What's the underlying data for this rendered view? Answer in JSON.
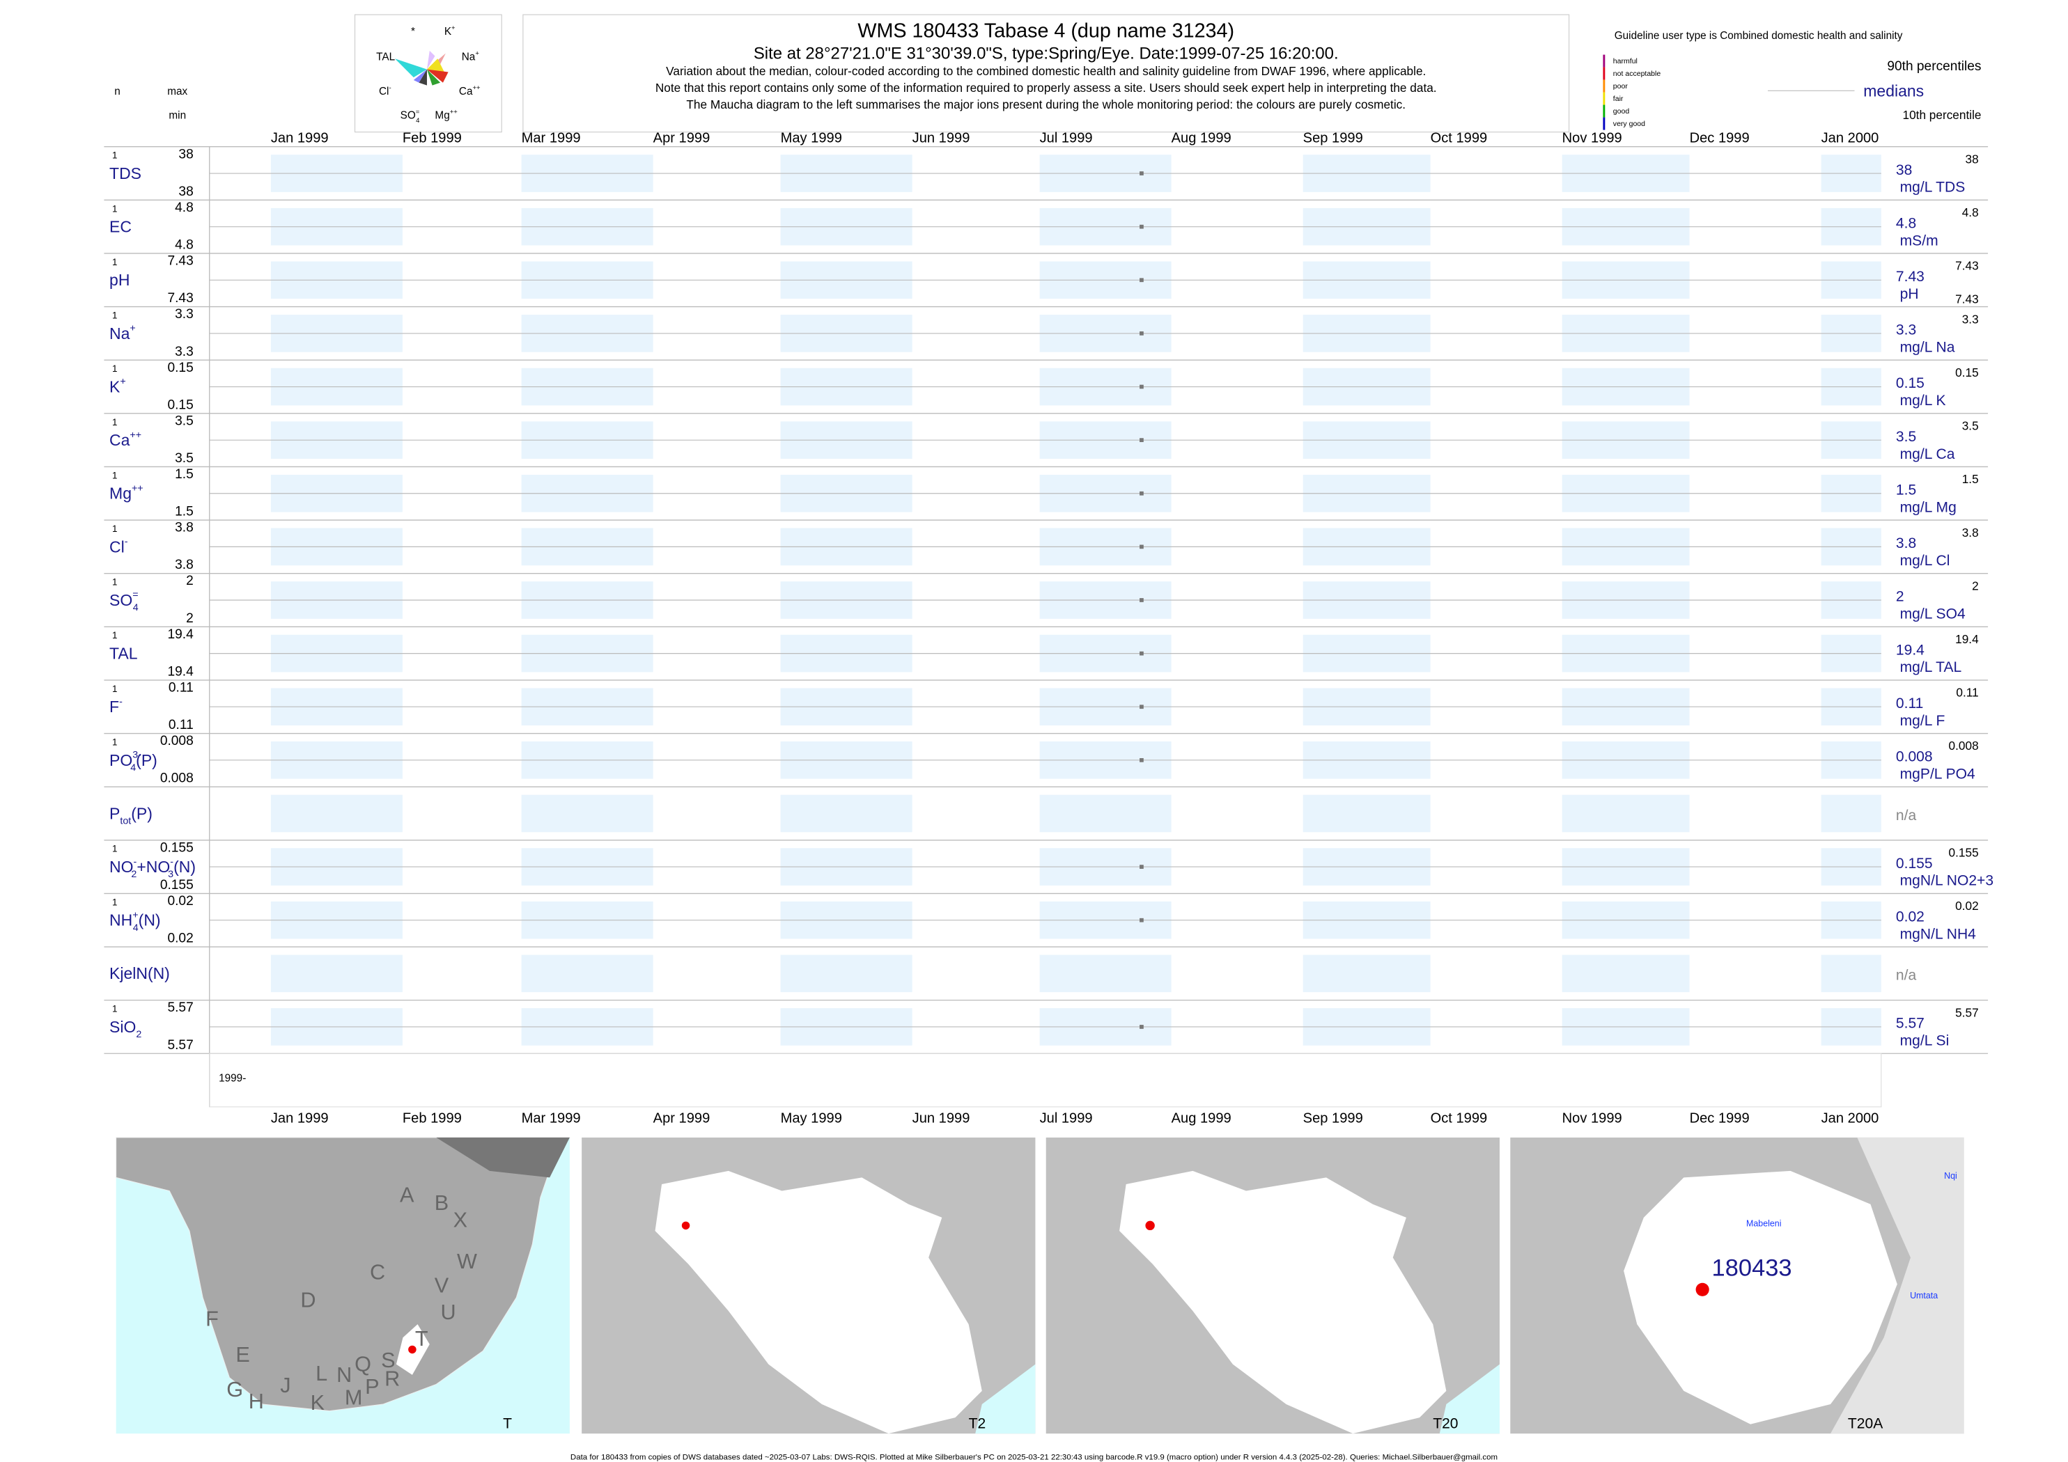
{
  "header": {
    "title": "WMS 180433  Tabase 4 (dup name 31234)",
    "site": "Site at 28°27'21.0\"E 31°30'39.0\"S, type:Spring/Eye. Date:",
    "date": "1999-07-25 16:20:00.",
    "notes": [
      "Variation about the median,  colour-coded according to the combined domestic health and salinity guideline from DWAF 1996, where applicable.",
      "Note that this report contains only some of the information required to properly assess a site. Users should seek expert help in interpreting the data.",
      "The Maucha diagram to the left summarises the major ions present during the whole monitoring period: the colours are purely cosmetic."
    ]
  },
  "maucha": {
    "labels": [
      [
        {
          "text": "*"
        }
      ],
      [
        {
          "text": "K"
        },
        {
          "text": "+",
          "pos": "sup"
        }
      ],
      [
        {
          "text": "Na"
        },
        {
          "text": "+",
          "pos": "sup"
        }
      ],
      [
        {
          "text": "Ca"
        },
        {
          "text": "++",
          "pos": "sup"
        }
      ],
      [
        {
          "text": "Mg"
        },
        {
          "text": "++",
          "pos": "sup"
        }
      ],
      [
        {
          "text": "SO"
        },
        {
          "text": "=",
          "pos": "sup"
        },
        {
          "text": "4",
          "pos": "sub",
          "stack": true
        }
      ],
      [
        {
          "text": "Cl"
        },
        {
          "text": "-",
          "pos": "sup"
        }
      ],
      [
        {
          "text": "TAL"
        }
      ]
    ]
  },
  "columns": {
    "n": "n",
    "max": "max",
    "min": "min"
  },
  "legend": {
    "title": "Guideline user type is Combined domestic health and salinity",
    "classes": [
      {
        "label": "harmful",
        "color": "#a0007a"
      },
      {
        "label": "not acceptable",
        "color": "#e0001a"
      },
      {
        "label": "poor",
        "color": "#ff8c00"
      },
      {
        "label": "fair",
        "color": "#f0e000"
      },
      {
        "label": "good",
        "color": "#00b000"
      },
      {
        "label": "very good",
        "color": "#0000c0"
      }
    ],
    "upper": "90th percentiles",
    "median": "medians",
    "lower": "10th percentile"
  },
  "months": [
    "Jan 1999",
    "Feb 1999",
    "Mar 1999",
    "Apr 1999",
    "May 1999",
    "Jun 1999",
    "Jul 1999",
    "Aug 1999",
    "Sep 1999",
    "Oct 1999",
    "Nov 1999",
    "Dec 1999",
    "Jan 2000"
  ],
  "rows": [
    {
      "label": [
        {
          "text": "TDS"
        }
      ],
      "n": 1,
      "max": 38,
      "min": 38,
      "median": 38,
      "unit": "mg/L TDS"
    },
    {
      "label": [
        {
          "text": "EC"
        }
      ],
      "n": 1,
      "max": 4.8,
      "min": 4.8,
      "median": 4.8,
      "unit": "mS/m"
    },
    {
      "label": [
        {
          "text": "pH"
        }
      ],
      "n": 1,
      "max": 7.43,
      "min": 7.43,
      "median": 7.43,
      "unit": "pH",
      "show_min": true
    },
    {
      "label": [
        {
          "text": "Na"
        },
        {
          "text": "+",
          "pos": "sup"
        }
      ],
      "n": 1,
      "max": 3.3,
      "min": 3.3,
      "median": 3.3,
      "unit": "mg/L Na"
    },
    {
      "label": [
        {
          "text": "K"
        },
        {
          "text": "+",
          "pos": "sup"
        }
      ],
      "n": 1,
      "max": 0.15,
      "min": 0.15,
      "median": 0.15,
      "unit": "mg/L K"
    },
    {
      "label": [
        {
          "text": "Ca"
        },
        {
          "text": "++",
          "pos": "sup"
        }
      ],
      "n": 1,
      "max": 3.5,
      "min": 3.5,
      "median": 3.5,
      "unit": "mg/L Ca"
    },
    {
      "label": [
        {
          "text": "Mg"
        },
        {
          "text": "++",
          "pos": "sup"
        }
      ],
      "n": 1,
      "max": 1.5,
      "min": 1.5,
      "median": 1.5,
      "unit": "mg/L Mg"
    },
    {
      "label": [
        {
          "text": "Cl"
        },
        {
          "text": "-",
          "pos": "sup"
        }
      ],
      "n": 1,
      "max": 3.8,
      "min": 3.8,
      "median": 3.8,
      "unit": "mg/L Cl"
    },
    {
      "label": [
        {
          "text": "SO"
        },
        {
          "text": "=",
          "pos": "sup"
        },
        {
          "text": "4",
          "pos": "sub",
          "stack": true
        }
      ],
      "n": 1,
      "max": 2,
      "min": 2,
      "median": 2,
      "unit": "mg/L SO4"
    },
    {
      "label": [
        {
          "text": "TAL"
        }
      ],
      "n": 1,
      "max": 19.4,
      "min": 19.4,
      "median": 19.4,
      "unit": "mg/L TAL"
    },
    {
      "label": [
        {
          "text": "F"
        },
        {
          "text": "-",
          "pos": "sup"
        }
      ],
      "n": 1,
      "max": 0.11,
      "min": 0.11,
      "median": 0.11,
      "unit": "mg/L F"
    },
    {
      "label": [
        {
          "text": "PO"
        },
        {
          "text": "3-",
          "pos": "sup"
        },
        {
          "text": "4",
          "pos": "sub",
          "stack": true
        },
        {
          "text": "(P)"
        }
      ],
      "n": 1,
      "max": 0.008,
      "min": 0.008,
      "median": 0.008,
      "unit": "mgP/L PO4"
    },
    {
      "label": [
        {
          "text": "P"
        },
        {
          "text": "tot",
          "pos": "sub"
        },
        {
          "text": "(P)"
        }
      ],
      "median": "n/a"
    },
    {
      "label": [
        {
          "text": "NO"
        },
        {
          "text": "-",
          "pos": "sup"
        },
        {
          "text": "2",
          "pos": "sub",
          "stack": true
        },
        {
          "text": "+NO"
        },
        {
          "text": "-",
          "pos": "sup"
        },
        {
          "text": "3",
          "pos": "sub",
          "stack": true
        },
        {
          "text": "(N)"
        }
      ],
      "n": 1,
      "max": 0.155,
      "min": 0.155,
      "median": 0.155,
      "unit": "mgN/L NO2+3"
    },
    {
      "label": [
        {
          "text": "NH"
        },
        {
          "text": "+",
          "pos": "sup"
        },
        {
          "text": "4",
          "pos": "sub",
          "stack": true
        },
        {
          "text": "(N)"
        }
      ],
      "n": 1,
      "max": 0.02,
      "min": 0.02,
      "median": 0.02,
      "unit": "mgN/L NH4"
    },
    {
      "label": [
        {
          "text": "KjelN(N)"
        }
      ],
      "median": "n/a"
    },
    {
      "label": [
        {
          "text": "SiO"
        },
        {
          "text": "2",
          "pos": "sub"
        }
      ],
      "n": 1,
      "max": 5.57,
      "min": 5.57,
      "median": 5.57,
      "unit": "mg/L Si"
    }
  ],
  "period": "1999-",
  "maps": [
    {
      "label": "T",
      "letters": [
        "A",
        "B",
        "X",
        "W",
        "C",
        "V",
        "D",
        "U",
        "F",
        "T",
        "E",
        "S",
        "Q",
        "L",
        "N",
        "R",
        "G",
        "H",
        "J",
        "P",
        "M",
        "K"
      ]
    },
    {
      "label": "T2"
    },
    {
      "label": "T20"
    },
    {
      "label": "T20A",
      "site": "180433",
      "places": [
        "Mabeleni",
        "Umtata",
        "Nqi"
      ]
    }
  ],
  "footer": "Data for 180433 from copies of DWS databases dated ~2025-03-07 Labs: DWS-RQIS. Plotted at Mike Silberbauer's PC on 2025-03-21 22:30:43 using barcode.R v19.9 (macro option) under R version 4.4.3 (2025-02-28). Queries: Michael.Silberbauer@gmail.com"
}
